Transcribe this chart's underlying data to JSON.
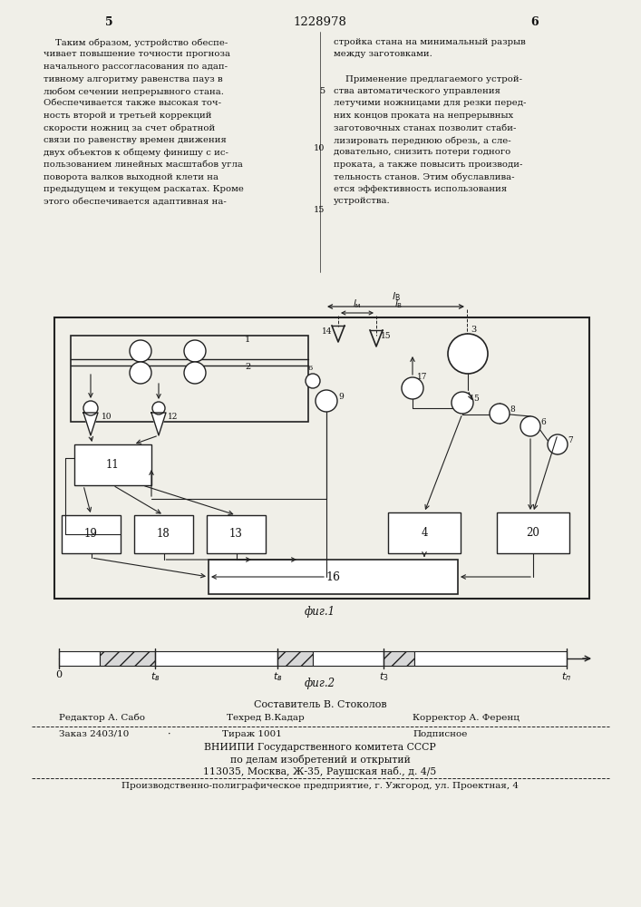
{
  "page_number_left": "5",
  "page_number_center": "1228978",
  "page_number_right": "6",
  "col_left_lines": [
    "    Таким образом, устройство обеспе-",
    "чивает повышение точности прогноза",
    "начального рассогласования по адап-",
    "тивному алгоритму равенства пауз в",
    "любом сечении непрерывного стана.",
    "Обеспечивается также высокая точ-",
    "ность второй и третьей коррекций",
    "скорости ножниц за счет обратной",
    "связи по равенству времен движения",
    "двух объектов к общему финишу с ис-",
    "пользованием линейных масштабов угла",
    "поворота валков выходной клети на",
    "предыдущем и текущем раскатах. Кроме",
    "этого обеспечивается адаптивная на-"
  ],
  "col_right_line1": "стройка стана на минимальный разрыв",
  "col_right_line2": "между заготовками.",
  "col_right_body": [
    "    Применение предлагаемого устрой-",
    "ства автоматического управления",
    "летучими ножницами для резки перед-",
    "них концов проката на непрерывных",
    "заготовочных станах позволит стаби-",
    "лизировать переднюю обрезь, а сле-",
    "довательно, снизить потери годного",
    "проката, а также повысить производи-",
    "тельность станов. Этим обуславлива-",
    "ется эффективность использования",
    "устройства."
  ],
  "fig1_caption": "фиг.1",
  "fig2_caption": "фиг.2",
  "footer_composer": "Составитель В. Стоколов",
  "footer_editor": "Редактор А. Сабо",
  "footer_techred": "Техред В.Кадар",
  "footer_corrector": "Корректор А. Ференц",
  "footer_order": "Заказ 2403/10",
  "footer_dot": "·",
  "footer_tirazh": "Тираж 1001",
  "footer_podpisnoe": "Подписное",
  "footer_vnipi": "ВНИИПИ Государственного комитета СССР",
  "footer_po_delam": "по делам изобретений и открытий",
  "footer_address": "113035, Москва, Ж-35, Раушская наб., д. 4/5",
  "footer_production": "Производственно-полиграфическое предприятие, г. Ужгород, ул. Проектная, 4",
  "bg_color": "#f0efe8",
  "text_color": "#111111",
  "line_color": "#222222"
}
